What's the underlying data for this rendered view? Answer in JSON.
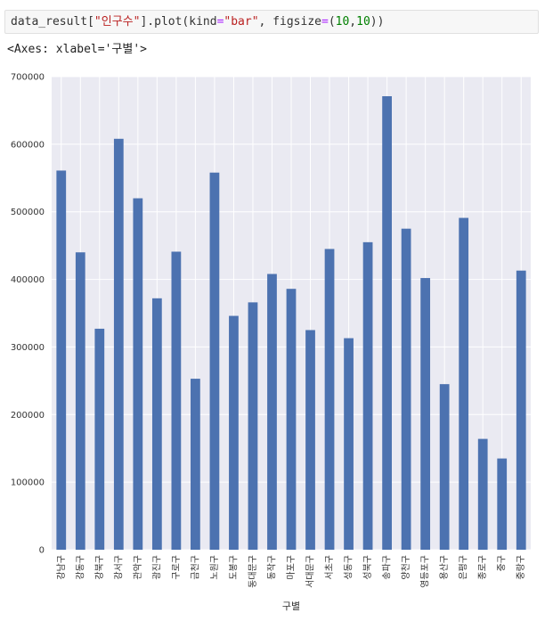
{
  "code_cell": {
    "prefix": "data_result[",
    "string_key": "\"인구수\"",
    "mid": "].plot(kind",
    "eq1": "=",
    "kind_value": "\"bar\"",
    "comma": ", figsize",
    "eq2": "=",
    "paren_open": "(",
    "num1": "10",
    "comma2": ",",
    "num2": "10",
    "suffix": "))"
  },
  "output_text": "<Axes: xlabel='구별'>",
  "colors": {
    "bar": "#4c72b0",
    "plot_bg": "#eaeaf2",
    "grid": "#ffffff"
  },
  "chart_data": {
    "type": "bar",
    "xlabel": "구별",
    "ylabel": "",
    "ylim": [
      0,
      700000
    ],
    "yticks": [
      "0",
      "100000",
      "200000",
      "300000",
      "400000",
      "500000",
      "600000",
      "700000"
    ],
    "grid": true,
    "categories": [
      "강남구",
      "강동구",
      "강북구",
      "강서구",
      "관악구",
      "광진구",
      "구로구",
      "금천구",
      "노원구",
      "도봉구",
      "동대문구",
      "동작구",
      "마포구",
      "서대문구",
      "서초구",
      "성동구",
      "성북구",
      "송파구",
      "양천구",
      "영등포구",
      "용산구",
      "은평구",
      "종로구",
      "중구",
      "중랑구"
    ],
    "values": [
      561000,
      440000,
      327000,
      608000,
      520000,
      372000,
      441000,
      253000,
      558000,
      346000,
      366000,
      408000,
      386000,
      325000,
      445000,
      313000,
      455000,
      671000,
      475000,
      402000,
      245000,
      491000,
      164000,
      135000,
      413000
    ]
  }
}
